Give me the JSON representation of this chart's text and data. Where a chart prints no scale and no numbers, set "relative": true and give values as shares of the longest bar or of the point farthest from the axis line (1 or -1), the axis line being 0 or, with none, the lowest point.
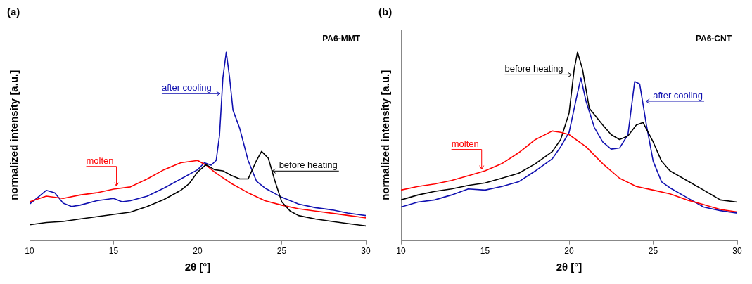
{
  "chart_data": [
    {
      "type": "line",
      "title": "(a)",
      "subtitle": "PA6-MMT",
      "xlabel": "2θ [°]",
      "ylabel": "normalized intensity [a.u.]",
      "relative": true,
      "xlim": [
        10,
        30
      ],
      "xticks": [
        10,
        15,
        20,
        25,
        30
      ],
      "tick_labels": "x",
      "grid": false,
      "legend": false,
      "marker": "none",
      "line_style": "solid",
      "annotations": [
        {
          "text": "after cooling",
          "x": 21.33,
          "y": 0.78
        },
        {
          "text": "molten",
          "x": 15.17,
          "y": 0.29
        },
        {
          "text": "before heating",
          "x": 24.42,
          "y": 0.37
        }
      ],
      "series": [
        {
          "color": "#000000",
          "x": [
            10,
            11,
            12,
            13,
            14,
            15,
            16,
            17,
            18,
            19,
            19.5,
            20,
            20.5,
            21,
            21.5,
            22,
            22.5,
            23,
            23.5,
            23.8,
            24.2,
            24.6,
            25,
            25.5,
            26,
            27,
            28,
            29,
            30
          ],
          "values": [
            0.085,
            0.097,
            0.103,
            0.116,
            0.128,
            0.14,
            0.152,
            0.182,
            0.219,
            0.268,
            0.304,
            0.365,
            0.404,
            0.377,
            0.371,
            0.347,
            0.328,
            0.328,
            0.426,
            0.474,
            0.438,
            0.316,
            0.207,
            0.158,
            0.134,
            0.116,
            0.103,
            0.091,
            0.079
          ]
        },
        {
          "color": "#ff0000",
          "x": [
            10,
            11,
            12,
            13,
            14,
            15,
            16,
            17,
            18,
            19,
            20,
            20.5,
            21,
            22,
            23,
            24,
            25,
            26,
            27,
            28,
            29,
            30
          ],
          "values": [
            0.207,
            0.237,
            0.225,
            0.243,
            0.255,
            0.274,
            0.286,
            0.328,
            0.377,
            0.414,
            0.426,
            0.401,
            0.365,
            0.304,
            0.255,
            0.213,
            0.189,
            0.17,
            0.158,
            0.146,
            0.134,
            0.122
          ]
        },
        {
          "color": "#1010b0",
          "x": [
            10,
            10.5,
            11,
            11.5,
            12,
            12.5,
            13,
            14,
            15,
            15.5,
            16,
            17,
            18,
            19,
            20,
            20.4,
            20.8,
            21.1,
            21.3,
            21.5,
            21.7,
            21.9,
            22.1,
            22.5,
            23,
            23.5,
            24,
            25,
            26,
            27,
            28,
            29,
            30
          ],
          "values": [
            0.195,
            0.231,
            0.268,
            0.255,
            0.2,
            0.182,
            0.189,
            0.213,
            0.225,
            0.207,
            0.213,
            0.237,
            0.28,
            0.328,
            0.377,
            0.414,
            0.401,
            0.426,
            0.56,
            0.864,
            1,
            0.864,
            0.693,
            0.596,
            0.426,
            0.316,
            0.28,
            0.231,
            0.195,
            0.176,
            0.164,
            0.146,
            0.134
          ]
        }
      ]
    },
    {
      "type": "line",
      "title": "(b)",
      "subtitle": "PA6-CNT",
      "xlabel": "2θ [°]",
      "ylabel": "normalized intensity [a.u.]",
      "relative": true,
      "xlim": [
        10,
        30
      ],
      "xticks": [
        10,
        15,
        20,
        25,
        30
      ],
      "tick_labels": "x",
      "grid": false,
      "legend": false,
      "marker": "none",
      "line_style": "solid",
      "annotations": [
        {
          "text": "before heating",
          "x": 20.15,
          "y": 0.88
        },
        {
          "text": "after cooling",
          "x": 24.57,
          "y": 0.74
        },
        {
          "text": "molten",
          "x": 14.8,
          "y": 0.38
        }
      ],
      "series": [
        {
          "color": "#ff0000",
          "x": [
            10,
            11,
            12,
            13,
            14,
            15,
            16,
            17,
            18,
            19,
            19.5,
            20,
            21,
            22,
            23,
            24,
            25,
            26,
            27,
            28,
            29,
            30
          ],
          "values": [
            0.269,
            0.288,
            0.301,
            0.32,
            0.345,
            0.371,
            0.409,
            0.467,
            0.537,
            0.582,
            0.575,
            0.563,
            0.499,
            0.409,
            0.332,
            0.288,
            0.269,
            0.249,
            0.217,
            0.192,
            0.166,
            0.153
          ]
        },
        {
          "color": "#000000",
          "x": [
            10,
            11,
            12,
            13,
            14,
            15,
            16,
            17,
            18,
            19,
            19.5,
            20,
            20.3,
            20.5,
            20.8,
            21.2,
            22,
            22.5,
            23,
            23.5,
            24,
            24.4,
            25,
            25.5,
            26,
            27,
            28,
            29,
            30
          ],
          "values": [
            0.217,
            0.243,
            0.262,
            0.275,
            0.294,
            0.307,
            0.332,
            0.358,
            0.409,
            0.473,
            0.537,
            0.678,
            0.908,
            1,
            0.908,
            0.703,
            0.614,
            0.563,
            0.537,
            0.556,
            0.614,
            0.627,
            0.524,
            0.422,
            0.371,
            0.32,
            0.269,
            0.217,
            0.205
          ]
        },
        {
          "color": "#1010b0",
          "x": [
            10,
            11,
            12,
            13,
            14,
            15,
            16,
            17,
            18,
            19,
            19.5,
            20,
            20.4,
            20.7,
            21,
            21.5,
            22,
            22.5,
            23,
            23.5,
            23.9,
            24.2,
            24.6,
            25,
            25.5,
            26,
            27,
            28,
            29,
            30
          ],
          "values": [
            0.179,
            0.205,
            0.217,
            0.243,
            0.275,
            0.269,
            0.288,
            0.313,
            0.371,
            0.435,
            0.499,
            0.575,
            0.742,
            0.863,
            0.742,
            0.601,
            0.524,
            0.486,
            0.492,
            0.563,
            0.844,
            0.831,
            0.614,
            0.422,
            0.313,
            0.281,
            0.23,
            0.179,
            0.16,
            0.147
          ]
        }
      ]
    }
  ]
}
